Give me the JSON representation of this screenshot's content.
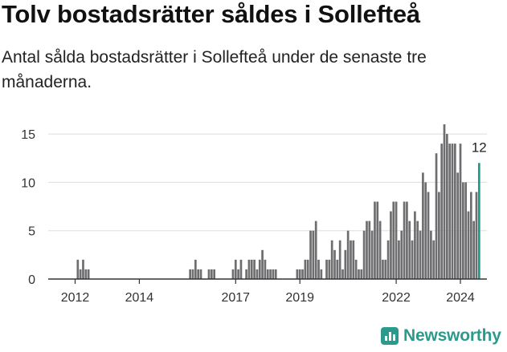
{
  "title": "Tolv bostadsrätter såldes i Sollefteå",
  "subtitle": "Antal sålda bostadsrätter i Sollefteå under de senaste tre månaderna.",
  "brand": {
    "name": "Newsworthy",
    "icon": "bar-chart-logo-icon",
    "color": "#2b9a8d"
  },
  "colors": {
    "bar": "#6e6e70",
    "highlight": "#1b9a8c",
    "grid": "#dddddd",
    "axis": "#333333"
  },
  "chart_data": {
    "type": "bar",
    "title": "Tolv bostadsrätter såldes i Sollefteå",
    "xlabel": "",
    "ylabel": "",
    "ylim": [
      0,
      16
    ],
    "yticks": [
      0,
      5,
      10,
      15
    ],
    "xtick_labels": [
      {
        "label": "2012",
        "month_index": 3
      },
      {
        "label": "2014",
        "month_index": 27
      },
      {
        "label": "2017",
        "month_index": 63
      },
      {
        "label": "2019",
        "month_index": 87
      },
      {
        "label": "2022",
        "month_index": 123
      },
      {
        "label": "2024",
        "month_index": 147
      }
    ],
    "start_month": "2011-10",
    "interval": "quarter ending at month",
    "values": [
      0,
      0,
      0,
      0,
      2,
      1,
      2,
      1,
      1,
      0,
      0,
      0,
      0,
      0,
      0,
      0,
      0,
      0,
      0,
      0,
      0,
      0,
      0,
      0,
      0,
      0,
      0,
      0,
      0,
      0,
      0,
      0,
      0,
      0,
      0,
      0,
      0,
      0,
      0,
      0,
      0,
      0,
      0,
      0,
      0,
      0,
      1,
      1,
      2,
      1,
      1,
      0,
      0,
      1,
      1,
      1,
      0,
      0,
      0,
      0,
      0,
      0,
      1,
      2,
      1,
      2,
      0,
      1,
      2,
      2,
      2,
      1,
      2,
      3,
      2,
      1,
      1,
      1,
      1,
      0,
      0,
      0,
      0,
      0,
      0,
      0,
      1,
      1,
      1,
      2,
      2,
      5,
      5,
      6,
      2,
      1,
      0,
      2,
      2,
      4,
      3,
      2,
      4,
      1,
      3,
      5,
      4,
      4,
      2,
      1,
      1,
      5,
      6,
      6,
      5,
      8,
      8,
      6,
      2,
      2,
      4,
      7,
      8,
      8,
      4,
      5,
      8,
      8,
      6,
      4,
      7,
      6,
      5,
      11,
      10,
      9,
      5,
      4,
      13,
      9,
      14,
      16,
      15,
      14,
      14,
      14,
      11,
      14,
      10,
      10,
      7,
      9,
      6,
      9,
      12
    ],
    "highlight": {
      "index": 154,
      "value": 12,
      "label": "12"
    }
  }
}
